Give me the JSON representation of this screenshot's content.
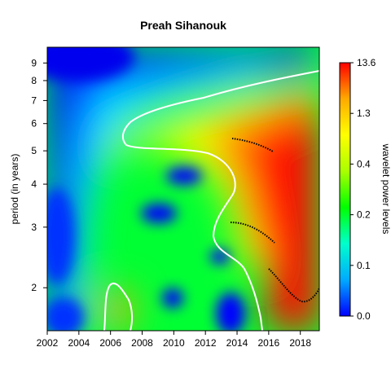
{
  "chart_data": {
    "type": "heatmap",
    "title": "Preah Sihanouk",
    "ylabel": "period (in years)",
    "colorbar_label": "wavelet power levels",
    "x_ticks": [
      2002,
      2004,
      2006,
      2008,
      2010,
      2012,
      2014,
      2016,
      2018
    ],
    "y_ticks": [
      2,
      3,
      4,
      5,
      6,
      7,
      8,
      9
    ],
    "xlim": [
      2002,
      2019.2
    ],
    "ylim": [
      1.5,
      10
    ],
    "y_scale": "log",
    "colorbar_levels": [
      "0.0",
      "0.1",
      "0.2",
      "0.4",
      "1.3",
      "13.6"
    ],
    "colorbar_colors": [
      "#0000ff",
      "#00aaff",
      "#00ffcc",
      "#00ff00",
      "#aaff00",
      "#ffff00",
      "#ffaa00",
      "#ff0000"
    ],
    "significance_contour_color": "#ffffff",
    "power_ridge_color": "#000000",
    "features": [
      {
        "kind": "low",
        "x": 2002.5,
        "y": 9.5,
        "level": 0.0
      },
      {
        "kind": "low",
        "x": 2002.5,
        "y": 3.2,
        "level": 0.05
      },
      {
        "kind": "low",
        "x": 2003.0,
        "y": 1.6,
        "level": 0.0
      },
      {
        "kind": "low",
        "x": 2010.6,
        "y": 4.2,
        "level": 0.0
      },
      {
        "kind": "low",
        "x": 2009.2,
        "y": 3.3,
        "level": 0.0
      },
      {
        "kind": "low",
        "x": 2013.0,
        "y": 2.45,
        "level": 0.0
      },
      {
        "kind": "low",
        "x": 2009.8,
        "y": 1.85,
        "level": 0.0
      },
      {
        "kind": "low",
        "x": 2013.6,
        "y": 1.6,
        "level": 0.0
      },
      {
        "kind": "high",
        "x": 2018.5,
        "y": 2.0,
        "level": 13.6
      },
      {
        "kind": "high",
        "x": 2018.5,
        "y": 4.5,
        "level": 13.6
      },
      {
        "kind": "high",
        "x": 2006.5,
        "y": 1.7,
        "level": 1.3
      }
    ]
  }
}
